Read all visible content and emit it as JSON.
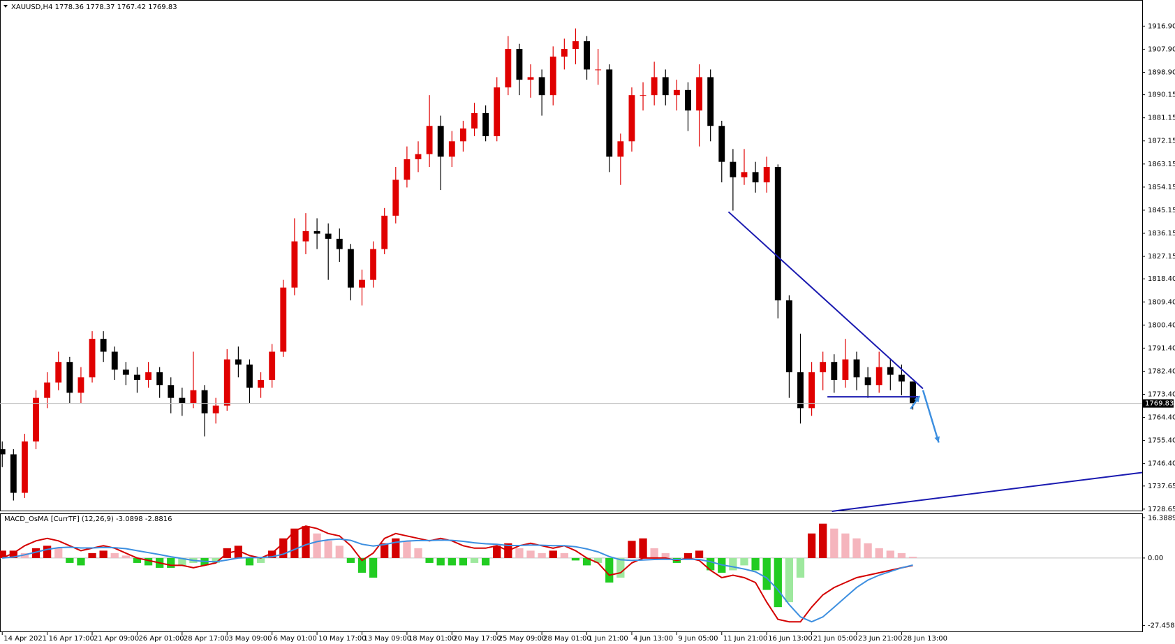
{
  "chart_data": [
    {
      "type": "candlestick",
      "title": "XAUUSD,H4  1778.36 1778.37 1767.42 1769.83",
      "up_color": "#e00000",
      "down_color": "#000000",
      "xlim": [
        -0.2,
        101.4
      ],
      "xticks": [
        {
          "value": 0,
          "label": "14 Apr 2021"
        },
        {
          "value": 4,
          "label": "16 Apr 17:00"
        },
        {
          "value": 8,
          "label": "21 Apr 09:00"
        },
        {
          "value": 12,
          "label": "26 Apr 01:00"
        },
        {
          "value": 16,
          "label": "28 Apr 17:00"
        },
        {
          "value": 20,
          "label": "3 May 09:00"
        },
        {
          "value": 24,
          "label": "6 May 01:00"
        },
        {
          "value": 28,
          "label": "10 May 17:00"
        },
        {
          "value": 32,
          "label": "13 May 09:00"
        },
        {
          "value": 36,
          "label": "18 May 01:00"
        },
        {
          "value": 40,
          "label": "20 May 17:00"
        },
        {
          "value": 44,
          "label": "25 May 09:00"
        },
        {
          "value": 48,
          "label": "28 May 01:00"
        },
        {
          "value": 52,
          "label": "1 Jun 21:00"
        },
        {
          "value": 56,
          "label": "4 Jun 13:00"
        },
        {
          "value": 60,
          "label": "9 Jun 05:00"
        },
        {
          "value": 64,
          "label": "11 Jun 21:00"
        },
        {
          "value": 68,
          "label": "16 Jun 13:00"
        },
        {
          "value": 72,
          "label": "21 Jun 05:00"
        },
        {
          "value": 76,
          "label": "23 Jun 21:00"
        },
        {
          "value": 80,
          "label": "28 Jun 13:00"
        }
      ],
      "ylim": [
        1727.8,
        1926.8
      ],
      "yticks": [
        {
          "value": 1916.9,
          "label": "1916.90"
        },
        {
          "value": 1907.9,
          "label": "1907.90"
        },
        {
          "value": 1898.9,
          "label": "1898.90"
        },
        1890.15,
        1881.15,
        1872.15,
        1863.15,
        1854.15,
        1845.15,
        1836.15,
        1827.15,
        {
          "value": 1818.4,
          "label": "1818.40"
        },
        {
          "value": 1809.4,
          "label": "1809.40"
        },
        {
          "value": 1800.4,
          "label": "1800.40"
        },
        {
          "value": 1791.4,
          "label": "1791.40"
        },
        {
          "value": 1782.4,
          "label": "1782.40"
        },
        {
          "value": 1773.4,
          "label": "1773.40"
        },
        {
          "value": 1764.4,
          "label": "1764.40"
        },
        {
          "value": 1755.4,
          "label": "1755.40"
        },
        {
          "value": 1746.4,
          "label": "1746.40"
        },
        1737.65,
        1728.65
      ],
      "last_price": 1769.83,
      "open": [
        1752,
        1750,
        1735,
        1755,
        1772,
        1778,
        1786,
        1774,
        1780,
        1795,
        1790,
        1783,
        1781,
        1779,
        1782,
        1777,
        1772,
        1770,
        1775,
        1766,
        1769,
        1787,
        1785,
        1776,
        1779,
        1790,
        1815,
        1833,
        1837,
        1836,
        1834,
        1830,
        1815,
        1818,
        1830,
        1843,
        1857,
        1865,
        1867,
        1878,
        1866,
        1872,
        1877,
        1883,
        1874,
        1893,
        1908,
        1896,
        1897,
        1890,
        1905,
        1908,
        1911,
        1900,
        1900,
        1866,
        1872,
        1890,
        1890,
        1897,
        1890,
        1892,
        1884,
        1897,
        1878,
        1864,
        1858,
        1860,
        1856,
        1862,
        1810,
        1782,
        1768,
        1782,
        1786,
        1779,
        1787,
        1780,
        1777,
        1784,
        1781,
        1778.36
      ],
      "high": [
        1755,
        1752,
        1758,
        1775,
        1782,
        1790,
        1788,
        1784,
        1798,
        1798,
        1792,
        1786,
        1784,
        1786,
        1784,
        1780,
        1776,
        1790,
        1777,
        1772,
        1791,
        1792,
        1787,
        1782,
        1793,
        1818,
        1842,
        1844,
        1842,
        1840,
        1838,
        1832,
        1822,
        1833,
        1846,
        1862,
        1870,
        1872,
        1890,
        1882,
        1876,
        1880,
        1887,
        1886,
        1897,
        1913,
        1910,
        1902,
        1900,
        1909,
        1912,
        1916,
        1913,
        1908,
        1902,
        1875,
        1893,
        1895,
        1903,
        1900,
        1896,
        1895,
        1902,
        1900,
        1880,
        1869,
        1869,
        1864,
        1866,
        1863,
        1812,
        1797,
        1786,
        1790,
        1789,
        1795,
        1790,
        1784,
        1790,
        1787,
        1785,
        1778.37
      ],
      "low": [
        1745,
        1732,
        1733,
        1752,
        1768,
        1775,
        1770,
        1770,
        1778,
        1786,
        1779,
        1777,
        1774,
        1776,
        1772,
        1766,
        1765,
        1768,
        1757,
        1762,
        1767,
        1780,
        1770,
        1772,
        1776,
        1788,
        1812,
        1828,
        1830,
        1818,
        1825,
        1810,
        1808,
        1815,
        1828,
        1840,
        1854,
        1860,
        1862,
        1853,
        1862,
        1868,
        1874,
        1872,
        1872,
        1890,
        1890,
        1889,
        1882,
        1886,
        1900,
        1902,
        1896,
        1894,
        1860,
        1855,
        1868,
        1884,
        1886,
        1886,
        1884,
        1876,
        1870,
        1872,
        1856,
        1845,
        1855,
        1852,
        1852,
        1803,
        1772,
        1762,
        1765,
        1775,
        1774,
        1776,
        1775,
        1772,
        1774,
        1775,
        1773,
        1767.42
      ],
      "close": [
        1750,
        1735,
        1755,
        1772,
        1778,
        1786,
        1774,
        1780,
        1795,
        1790,
        1783,
        1781,
        1779,
        1782,
        1777,
        1772,
        1770,
        1775,
        1766,
        1769,
        1787,
        1785,
        1776,
        1779,
        1790,
        1815,
        1833,
        1837,
        1836,
        1834,
        1830,
        1815,
        1818,
        1830,
        1843,
        1857,
        1865,
        1867,
        1878,
        1866,
        1872,
        1877,
        1883,
        1874,
        1893,
        1908,
        1896,
        1897,
        1890,
        1905,
        1908,
        1911,
        1900,
        1900,
        1866,
        1872,
        1890,
        1890,
        1897,
        1890,
        1892,
        1884,
        1897,
        1878,
        1864,
        1858,
        1860,
        1856,
        1862,
        1810,
        1782,
        1768,
        1782,
        1786,
        1779,
        1787,
        1780,
        1777,
        1784,
        1781,
        1778.36,
        1769.83
      ],
      "trendlines": [
        {
          "color": "#1a1ab0",
          "x": [
            64.6,
            81.9
          ],
          "y": [
            1844.5,
            1775.6
          ]
        },
        {
          "color": "#1a1ab0",
          "x": [
            73.4,
            81.6
          ],
          "y": [
            1772.4,
            1772.4
          ]
        },
        {
          "color": "#1a1ab0",
          "x": [
            73.8,
            101.4
          ],
          "y": [
            1727.8,
            1742.9
          ]
        }
      ],
      "arrows": [
        {
          "color": "#3d8fe0",
          "x": [
            80.8,
            81.6
          ],
          "y": [
            1767.7,
            1772.7
          ]
        },
        {
          "color": "#3d8fe0",
          "x": [
            81.9,
            83.3
          ],
          "y": [
            1775.0,
            1754.6
          ]
        }
      ]
    },
    {
      "type": "macd",
      "title": "MACD_OsMA [CurrTF] (12,26,9) -3.0898 -2.8816",
      "ylim": [
        -30.2,
        17.9
      ],
      "yticks": [
        16.3889,
        {
          "value": 0,
          "label": "0.00"
        },
        -27.4583
      ],
      "hist_colors": {
        "pos_up": "#d40000",
        "pos_down": "#f5b5bd",
        "neg_down": "#22cc22",
        "neg_up": "#9ee89e"
      },
      "macd_color": "#d40000",
      "signal_color": "#3d8fe0",
      "histogram": [
        3,
        3,
        2,
        4,
        5,
        4,
        -2,
        -3,
        2,
        3,
        2,
        1,
        -2,
        -3,
        -4,
        -4,
        -3,
        -2,
        -3,
        -2,
        4,
        5,
        -3,
        -2,
        3,
        8,
        12,
        13,
        10,
        7,
        5,
        -2,
        -6,
        -8,
        6,
        8,
        7,
        4,
        -2,
        -3,
        -3,
        -3,
        -2,
        -3,
        5,
        6,
        4,
        3,
        2,
        3,
        2,
        -1,
        -3,
        -2,
        -10,
        -8,
        7,
        8,
        4,
        2,
        -2,
        2,
        3,
        -5,
        -6,
        -5,
        -3,
        -5,
        -13,
        -20,
        -18,
        -8,
        10,
        14,
        12,
        10,
        8,
        6,
        4,
        3,
        2,
        0.5
      ],
      "macd": [
        0,
        2,
        5,
        7,
        8,
        7,
        5,
        3,
        4,
        5,
        4,
        2,
        0,
        -1,
        -2,
        -3,
        -3,
        -4,
        -3,
        -2,
        2,
        3,
        1,
        0,
        2,
        6,
        11,
        13,
        12,
        10,
        9,
        5,
        -1,
        2,
        8,
        10,
        9,
        8,
        7,
        8,
        7,
        5,
        4,
        4,
        5,
        3,
        5,
        6,
        5,
        4,
        5,
        3,
        0,
        -2,
        -7,
        -6,
        -2,
        0,
        0,
        0,
        -1,
        0,
        -1,
        -5,
        -8,
        -7,
        -8,
        -10,
        -18,
        -25,
        -26,
        -26,
        -20,
        -15,
        -12,
        -10,
        -8,
        -7,
        -6,
        -5,
        -4,
        -3.09
      ],
      "signal": [
        0,
        0.4,
        1.3,
        2.4,
        3.5,
        4.2,
        4.4,
        4.1,
        4.1,
        4.3,
        4.2,
        3.8,
        3.0,
        2.2,
        1.4,
        0.5,
        -0.2,
        -1.0,
        -1.4,
        -1.5,
        -0.8,
        0,
        0.2,
        0.2,
        0.5,
        1.6,
        3.5,
        5.4,
        6.7,
        7.4,
        7.7,
        7.2,
        5.6,
        4.9,
        5.5,
        6.4,
        6.9,
        7.1,
        7.1,
        7.3,
        7.2,
        6.8,
        6.2,
        5.8,
        5.6,
        5.1,
        5.1,
        5.3,
        5.2,
        5.0,
        5.0,
        4.6,
        3.7,
        2.5,
        0.6,
        -0.7,
        -1.0,
        -0.8,
        -0.6,
        -0.5,
        -0.6,
        -0.5,
        -0.6,
        -1.5,
        -2.8,
        -3.6,
        -4.5,
        -5.6,
        -8.1,
        -13,
        -19,
        -24,
        -26,
        -24,
        -20,
        -16,
        -12,
        -9,
        -7,
        -5.5,
        -4,
        -2.88
      ]
    }
  ]
}
